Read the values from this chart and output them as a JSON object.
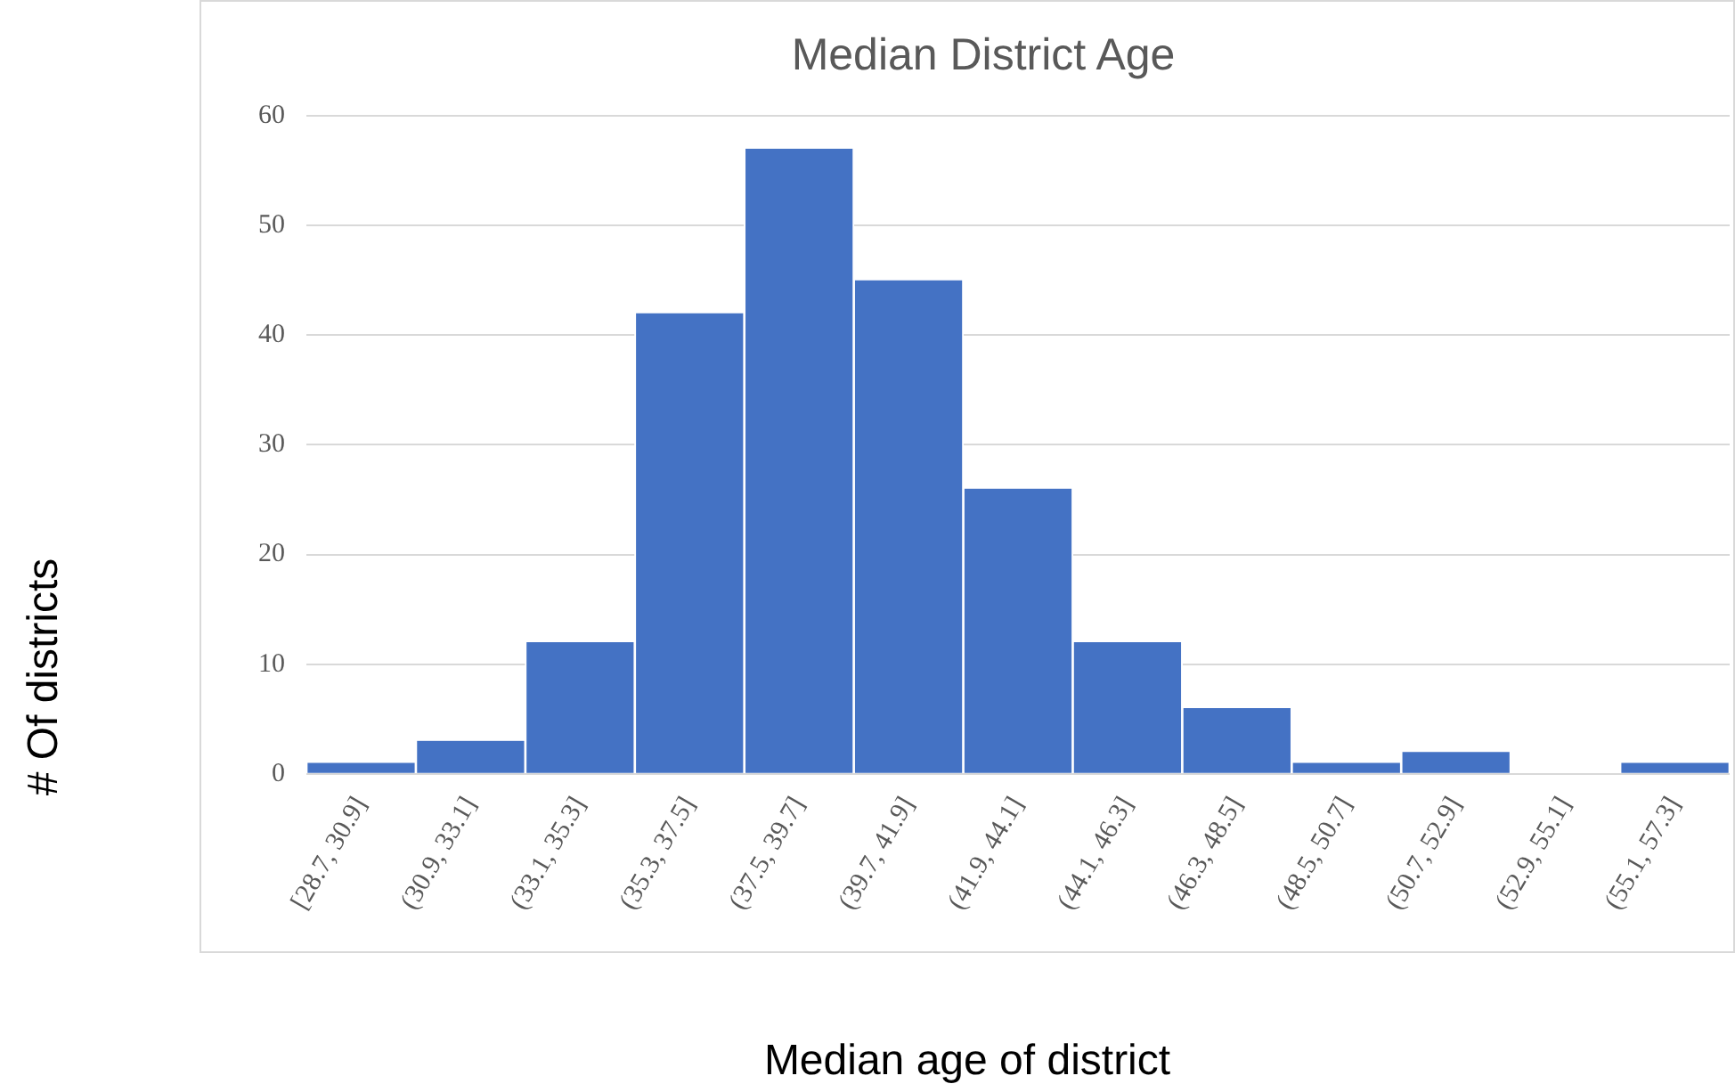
{
  "chart_data": {
    "type": "bar",
    "title": "Median District Age",
    "xlabel": "Median age of district",
    "ylabel": "# Of districts",
    "categories": [
      "[28.7, 30.9]",
      "(30.9, 33.1]",
      "(33.1, 35.3]",
      "(35.3, 37.5]",
      "(37.5, 39.7]",
      "(39.7, 41.9]",
      "(41.9, 44.1]",
      "(44.1, 46.3]",
      "(46.3, 48.5]",
      "(48.5, 50.7]",
      "(50.7, 52.9]",
      "(52.9, 55.1]",
      "(55.1, 57.3]"
    ],
    "values": [
      1,
      3,
      12,
      42,
      57,
      45,
      26,
      12,
      6,
      1,
      2,
      0,
      1
    ],
    "color": "#4472c4",
    "ylim": [
      0,
      60
    ],
    "yticks": [
      0,
      10,
      20,
      30,
      40,
      50,
      60
    ],
    "grid": "y"
  }
}
